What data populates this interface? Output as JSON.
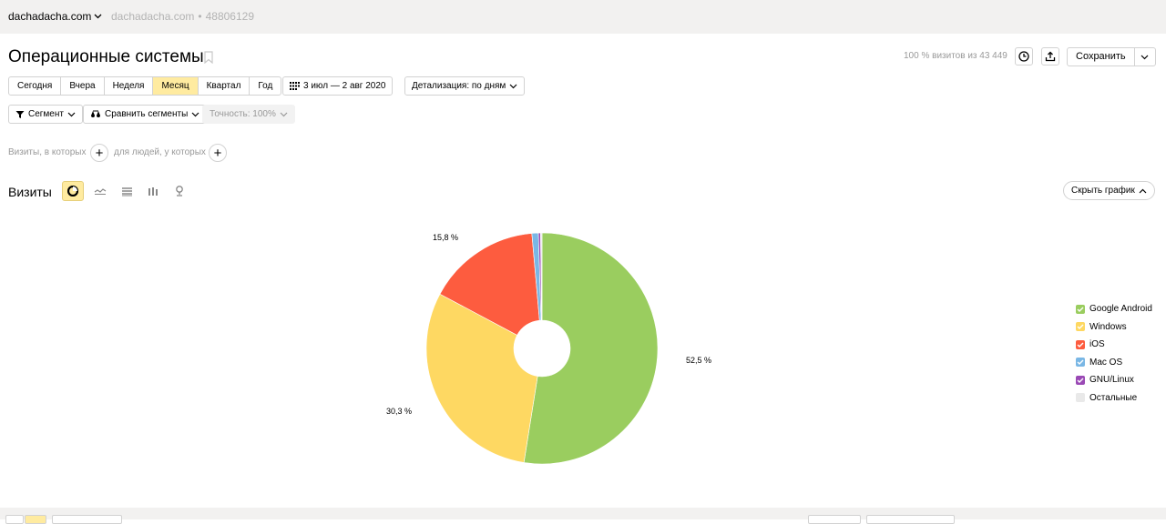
{
  "topbar": {
    "site_name": "dachadacha.com",
    "site_id_domain": "dachadacha.com",
    "site_id_sep": "•",
    "site_id_number": "48806129"
  },
  "header": {
    "title": "Операционные системы",
    "visits_share": "100 % визитов из 43 449",
    "save_label": "Сохранить"
  },
  "periods": [
    {
      "label": "Сегодня",
      "active": false
    },
    {
      "label": "Вчера",
      "active": false
    },
    {
      "label": "Неделя",
      "active": false
    },
    {
      "label": "Месяц",
      "active": true
    },
    {
      "label": "Квартал",
      "active": false
    },
    {
      "label": "Год",
      "active": false
    }
  ],
  "date_range": "3 июл — 2 авг 2020",
  "detail": "Детализация: по дням",
  "segment_label": "Сегмент",
  "compare_label": "Сравнить сегменты",
  "accuracy_label": "Точность: 100%",
  "filters": {
    "visits_label": "Визиты, в которых",
    "people_label": "для людей, у которых"
  },
  "chart_section": {
    "title": "Визиты",
    "hide_chart_label": "Скрыть график"
  },
  "colors": {
    "accent": "#ffeba0",
    "android": "#9acd5f",
    "windows": "#fed862",
    "ios": "#fd5c3f",
    "macos": "#7ab7e5",
    "linux": "#9a49b5",
    "other": "#e9e9e9"
  },
  "chart_data": {
    "type": "pie",
    "categories": [
      "Google Android",
      "Windows",
      "iOS",
      "Mac OS",
      "GNU/Linux",
      "Остальные"
    ],
    "values": [
      52.5,
      30.3,
      15.8,
      0.9,
      0.3,
      0.2
    ],
    "labels": [
      "52,5 %",
      "30,3 %",
      "15,8 %",
      "",
      "",
      ""
    ],
    "legend": "right"
  }
}
